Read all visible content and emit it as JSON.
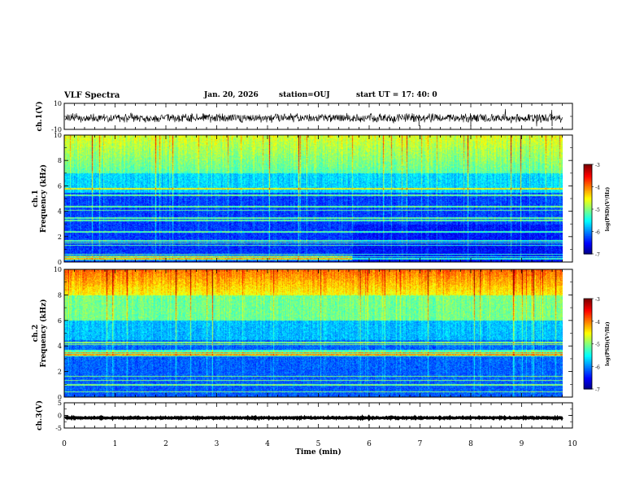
{
  "header": {
    "title": "VLF Spectra",
    "date": "Jan. 20, 2026",
    "station": "station=OUJ",
    "start": "start  UT =   17: 40: 0"
  },
  "chart_data": [
    {
      "type": "line",
      "name": "ch1-waveform",
      "ylabel": "ch.1(V)",
      "ylim": [
        -10,
        10
      ],
      "yticks": [
        "10",
        "-10"
      ],
      "xlim": [
        0,
        10
      ]
    },
    {
      "type": "heatmap",
      "name": "ch1-spectrogram",
      "ylabel": "ch.1\nFrequency (kHz)",
      "ylim": [
        0,
        10
      ],
      "yticks": [
        "0",
        "2",
        "4",
        "6",
        "8",
        "10"
      ],
      "xlim": [
        0,
        10
      ],
      "data_end_min": 9.8,
      "colorbar": {
        "label": "log(PSD)(V²/Hz)",
        "ticks": [
          "-3",
          "-4",
          "-5",
          "-6",
          "-7"
        ],
        "range": [
          -7,
          -3
        ]
      }
    },
    {
      "type": "heatmap",
      "name": "ch2-spectrogram",
      "ylabel": "ch.2\nFrequency (kHz)",
      "ylim": [
        0,
        10
      ],
      "yticks": [
        "0",
        "2",
        "4",
        "6",
        "8",
        "10"
      ],
      "xlim": [
        0,
        10
      ],
      "data_end_min": 9.8,
      "colorbar": {
        "label": "log(PSD)(V²/Hz)",
        "ticks": [
          "-3",
          "-4",
          "-5",
          "-6",
          "-7"
        ],
        "range": [
          -7,
          -3
        ]
      }
    },
    {
      "type": "line",
      "name": "ch3-waveform",
      "ylabel": "ch.3(V)",
      "ylim": [
        -5,
        5
      ],
      "yticks": [
        "5",
        "0",
        "-5"
      ],
      "xlim": [
        0,
        10
      ],
      "xlabel": "Time (min)",
      "xticks": [
        "0",
        "1",
        "2",
        "3",
        "4",
        "5",
        "6",
        "7",
        "8",
        "9",
        "10"
      ]
    }
  ]
}
